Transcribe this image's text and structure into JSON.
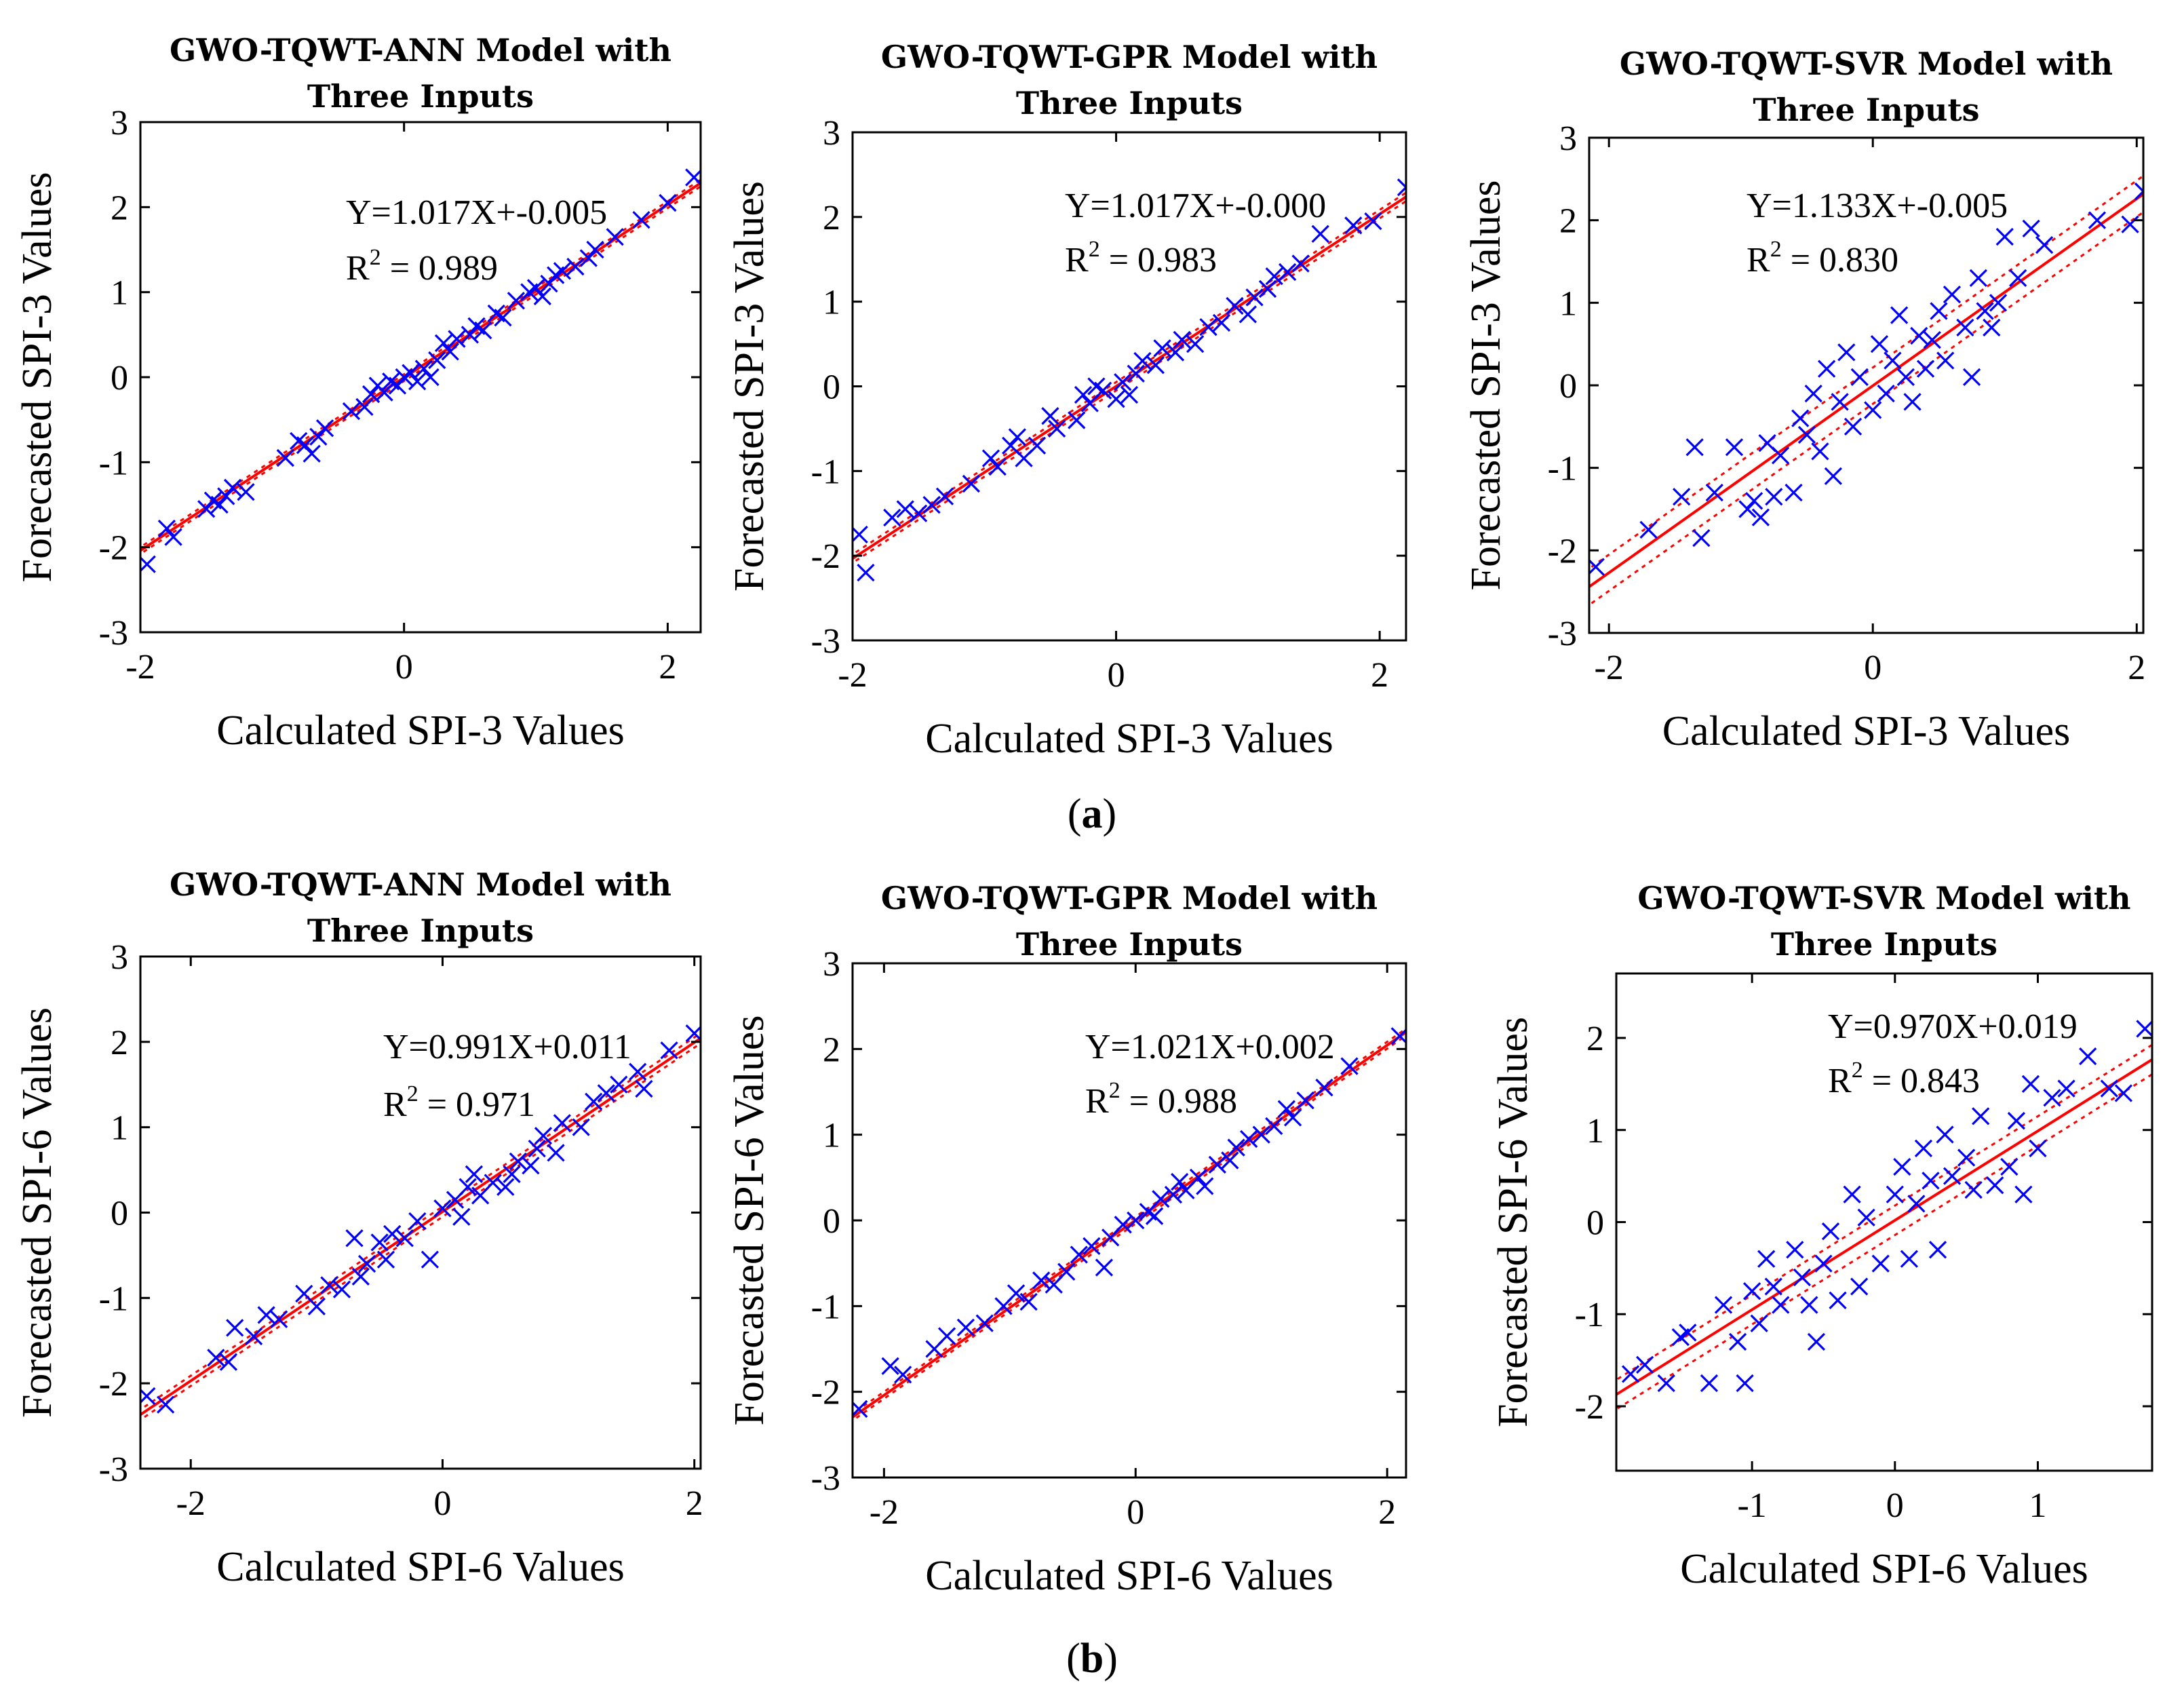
{
  "figure": {
    "caption_a": {
      "open": "(",
      "letter": "a",
      "close": ")"
    },
    "caption_b": {
      "open": "(",
      "letter": "b",
      "close": ")"
    }
  },
  "colors": {
    "points": "#0000ff",
    "fit_line": "#ff0000",
    "axes": "#000000"
  },
  "chart_data": [
    {
      "id": "a1",
      "type": "scatter",
      "title_line1": "GWO-TQWT-ANN Model with",
      "title_line2": "Three Inputs",
      "xlabel": "Calculated SPI-3 Values",
      "ylabel": "Forecasted SPI-3 Values",
      "xlim": [
        -2.0,
        2.25
      ],
      "ylim": [
        -3,
        3
      ],
      "xticks": [
        -2,
        0,
        2
      ],
      "yticks": [
        -3,
        -2,
        -1,
        0,
        1,
        2,
        3
      ],
      "equation": "Y=1.017X+-0.005",
      "r2_prefix": "R",
      "r2_sup": "2",
      "r2_value": " = 0.989",
      "slope": 1.017,
      "intercept": -0.005,
      "ci_band": 0.04,
      "points": [
        [
          -1.95,
          -2.2
        ],
        [
          -1.8,
          -1.78
        ],
        [
          -1.75,
          -1.88
        ],
        [
          -1.5,
          -1.55
        ],
        [
          -1.45,
          -1.45
        ],
        [
          -1.4,
          -1.5
        ],
        [
          -1.35,
          -1.4
        ],
        [
          -1.3,
          -1.3
        ],
        [
          -1.2,
          -1.35
        ],
        [
          -0.9,
          -0.95
        ],
        [
          -0.8,
          -0.75
        ],
        [
          -0.75,
          -0.8
        ],
        [
          -0.7,
          -0.9
        ],
        [
          -0.65,
          -0.7
        ],
        [
          -0.6,
          -0.6
        ],
        [
          -0.4,
          -0.4
        ],
        [
          -0.3,
          -0.35
        ],
        [
          -0.25,
          -0.2
        ],
        [
          -0.2,
          -0.1
        ],
        [
          -0.15,
          -0.18
        ],
        [
          -0.1,
          -0.05
        ],
        [
          -0.05,
          -0.1
        ],
        [
          0.0,
          0.0
        ],
        [
          0.05,
          0.05
        ],
        [
          0.1,
          -0.05
        ],
        [
          0.15,
          0.1
        ],
        [
          0.2,
          0.0
        ],
        [
          0.25,
          0.2
        ],
        [
          0.3,
          0.4
        ],
        [
          0.35,
          0.3
        ],
        [
          0.4,
          0.45
        ],
        [
          0.5,
          0.5
        ],
        [
          0.55,
          0.6
        ],
        [
          0.6,
          0.55
        ],
        [
          0.7,
          0.75
        ],
        [
          0.75,
          0.7
        ],
        [
          0.85,
          0.9
        ],
        [
          0.95,
          1.0
        ],
        [
          1.0,
          1.05
        ],
        [
          1.05,
          0.95
        ],
        [
          1.1,
          1.1
        ],
        [
          1.15,
          1.2
        ],
        [
          1.2,
          1.25
        ],
        [
          1.3,
          1.3
        ],
        [
          1.4,
          1.4
        ],
        [
          1.45,
          1.5
        ],
        [
          1.6,
          1.65
        ],
        [
          1.8,
          1.85
        ],
        [
          2.0,
          2.05
        ],
        [
          2.2,
          2.35
        ]
      ]
    },
    {
      "id": "a2",
      "type": "scatter",
      "title_line1": "GWO-TQWT-GPR Model with",
      "title_line2": "Three Inputs",
      "xlabel": "Calculated SPI-3 Values",
      "ylabel": "Forecasted SPI-3 Values",
      "xlim": [
        -2.0,
        2.2
      ],
      "ylim": [
        -3,
        3
      ],
      "xticks": [
        -2,
        0,
        2
      ],
      "yticks": [
        -3,
        -2,
        -1,
        0,
        1,
        2,
        3
      ],
      "equation": "Y=1.017X+-0.000",
      "r2_prefix": "R",
      "r2_sup": "2",
      "r2_value": " = 0.983",
      "slope": 1.017,
      "intercept": 0.0,
      "ci_band": 0.05,
      "points": [
        [
          -1.95,
          -1.75
        ],
        [
          -1.9,
          -2.2
        ],
        [
          -1.7,
          -1.55
        ],
        [
          -1.6,
          -1.45
        ],
        [
          -1.5,
          -1.5
        ],
        [
          -1.4,
          -1.4
        ],
        [
          -1.3,
          -1.3
        ],
        [
          -1.1,
          -1.15
        ],
        [
          -0.95,
          -0.85
        ],
        [
          -0.9,
          -0.95
        ],
        [
          -0.8,
          -0.7
        ],
        [
          -0.75,
          -0.6
        ],
        [
          -0.7,
          -0.85
        ],
        [
          -0.6,
          -0.7
        ],
        [
          -0.5,
          -0.35
        ],
        [
          -0.45,
          -0.5
        ],
        [
          -0.3,
          -0.4
        ],
        [
          -0.25,
          -0.1
        ],
        [
          -0.2,
          -0.2
        ],
        [
          -0.15,
          0.0
        ],
        [
          -0.1,
          -0.05
        ],
        [
          0.0,
          -0.15
        ],
        [
          0.05,
          0.05
        ],
        [
          0.1,
          -0.1
        ],
        [
          0.15,
          0.15
        ],
        [
          0.2,
          0.3
        ],
        [
          0.3,
          0.25
        ],
        [
          0.35,
          0.45
        ],
        [
          0.45,
          0.4
        ],
        [
          0.5,
          0.55
        ],
        [
          0.6,
          0.5
        ],
        [
          0.7,
          0.7
        ],
        [
          0.8,
          0.75
        ],
        [
          0.9,
          0.95
        ],
        [
          1.0,
          0.85
        ],
        [
          1.05,
          1.05
        ],
        [
          1.15,
          1.15
        ],
        [
          1.2,
          1.3
        ],
        [
          1.3,
          1.35
        ],
        [
          1.4,
          1.45
        ],
        [
          1.55,
          1.8
        ],
        [
          1.8,
          1.9
        ],
        [
          1.95,
          1.95
        ],
        [
          2.2,
          2.35
        ]
      ]
    },
    {
      "id": "a3",
      "type": "scatter",
      "title_line1": "GWO-TQWT-SVR Model with",
      "title_line2": "Three Inputs",
      "xlabel": "Calculated SPI-3 Values",
      "ylabel": "Forecasted SPI-3 Values",
      "xlim": [
        -2.15,
        2.05
      ],
      "ylim": [
        -3,
        3
      ],
      "xticks": [
        -2,
        0,
        2
      ],
      "yticks": [
        -3,
        -2,
        -1,
        0,
        1,
        2,
        3
      ],
      "equation": "Y=1.133X+-0.005",
      "r2_prefix": "R",
      "r2_sup": "2",
      "r2_value": " = 0.830",
      "slope": 1.133,
      "intercept": -0.005,
      "ci_band": 0.22,
      "points": [
        [
          -2.1,
          -2.2
        ],
        [
          -1.7,
          -1.75
        ],
        [
          -1.45,
          -1.35
        ],
        [
          -1.35,
          -0.75
        ],
        [
          -1.3,
          -1.85
        ],
        [
          -1.2,
          -1.3
        ],
        [
          -1.05,
          -0.75
        ],
        [
          -0.95,
          -1.5
        ],
        [
          -0.9,
          -1.4
        ],
        [
          -0.85,
          -1.6
        ],
        [
          -0.8,
          -0.7
        ],
        [
          -0.75,
          -1.35
        ],
        [
          -0.7,
          -0.85
        ],
        [
          -0.6,
          -1.3
        ],
        [
          -0.55,
          -0.4
        ],
        [
          -0.5,
          -0.6
        ],
        [
          -0.45,
          -0.1
        ],
        [
          -0.4,
          -0.8
        ],
        [
          -0.35,
          0.2
        ],
        [
          -0.3,
          -1.1
        ],
        [
          -0.25,
          -0.2
        ],
        [
          -0.2,
          0.4
        ],
        [
          -0.15,
          -0.5
        ],
        [
          -0.1,
          0.1
        ],
        [
          0.0,
          -0.3
        ],
        [
          0.05,
          0.5
        ],
        [
          0.1,
          -0.1
        ],
        [
          0.15,
          0.3
        ],
        [
          0.2,
          0.85
        ],
        [
          0.25,
          0.1
        ],
        [
          0.3,
          -0.2
        ],
        [
          0.35,
          0.6
        ],
        [
          0.4,
          0.2
        ],
        [
          0.45,
          0.55
        ],
        [
          0.5,
          0.9
        ],
        [
          0.55,
          0.3
        ],
        [
          0.6,
          1.1
        ],
        [
          0.7,
          0.7
        ],
        [
          0.75,
          0.1
        ],
        [
          0.8,
          1.3
        ],
        [
          0.85,
          0.9
        ],
        [
          0.9,
          0.7
        ],
        [
          0.95,
          1.0
        ],
        [
          1.0,
          1.8
        ],
        [
          1.1,
          1.3
        ],
        [
          1.2,
          1.9
        ],
        [
          1.3,
          1.7
        ],
        [
          1.7,
          2.0
        ],
        [
          1.95,
          1.95
        ],
        [
          2.05,
          2.35
        ]
      ]
    },
    {
      "id": "b1",
      "type": "scatter",
      "title_line1": "GWO-TQWT-ANN Model with",
      "title_line2": "Three Inputs",
      "xlabel": "Calculated SPI-6 Values",
      "ylabel": "Forecasted SPI-6 Values",
      "xlim": [
        -2.4,
        2.05
      ],
      "ylim": [
        -3,
        3
      ],
      "xticks": [
        -2,
        0,
        2
      ],
      "yticks": [
        -3,
        -2,
        -1,
        0,
        1,
        2,
        3
      ],
      "equation": "Y=0.991X+0.011",
      "r2_prefix": "R",
      "r2_sup": "2",
      "r2_value": " = 0.971",
      "slope": 0.991,
      "intercept": 0.011,
      "ci_band": 0.06,
      "points": [
        [
          -2.35,
          -2.15
        ],
        [
          -2.2,
          -2.25
        ],
        [
          -1.8,
          -1.7
        ],
        [
          -1.7,
          -1.75
        ],
        [
          -1.65,
          -1.35
        ],
        [
          -1.5,
          -1.45
        ],
        [
          -1.4,
          -1.2
        ],
        [
          -1.3,
          -1.25
        ],
        [
          -1.1,
          -0.95
        ],
        [
          -1.0,
          -1.1
        ],
        [
          -0.9,
          -0.85
        ],
        [
          -0.8,
          -0.9
        ],
        [
          -0.7,
          -0.3
        ],
        [
          -0.65,
          -0.75
        ],
        [
          -0.6,
          -0.6
        ],
        [
          -0.5,
          -0.35
        ],
        [
          -0.45,
          -0.55
        ],
        [
          -0.4,
          -0.25
        ],
        [
          -0.3,
          -0.3
        ],
        [
          -0.2,
          -0.1
        ],
        [
          -0.1,
          -0.55
        ],
        [
          0.0,
          0.05
        ],
        [
          0.1,
          0.15
        ],
        [
          0.15,
          -0.05
        ],
        [
          0.2,
          0.3
        ],
        [
          0.25,
          0.45
        ],
        [
          0.3,
          0.2
        ],
        [
          0.4,
          0.35
        ],
        [
          0.5,
          0.3
        ],
        [
          0.55,
          0.45
        ],
        [
          0.6,
          0.6
        ],
        [
          0.7,
          0.55
        ],
        [
          0.75,
          0.75
        ],
        [
          0.8,
          0.9
        ],
        [
          0.9,
          0.7
        ],
        [
          0.95,
          1.05
        ],
        [
          1.1,
          1.0
        ],
        [
          1.2,
          1.3
        ],
        [
          1.3,
          1.4
        ],
        [
          1.4,
          1.5
        ],
        [
          1.55,
          1.65
        ],
        [
          1.6,
          1.45
        ],
        [
          1.8,
          1.9
        ],
        [
          2.0,
          2.1
        ]
      ]
    },
    {
      "id": "b2",
      "type": "scatter",
      "title_line1": "GWO-TQWT-GPR Model with",
      "title_line2": "Three Inputs",
      "xlabel": "Calculated SPI-6 Values",
      "ylabel": "Forecasted SPI-6 Values",
      "xlim": [
        -2.25,
        2.15
      ],
      "ylim": [
        -3,
        3
      ],
      "xticks": [
        -2,
        0,
        2
      ],
      "yticks": [
        -3,
        -2,
        -1,
        0,
        1,
        2,
        3
      ],
      "equation": "Y=1.021X+0.002",
      "r2_prefix": "R",
      "r2_sup": "2",
      "r2_value": " = 0.988",
      "slope": 1.021,
      "intercept": 0.002,
      "ci_band": 0.04,
      "points": [
        [
          -2.2,
          -2.2
        ],
        [
          -1.95,
          -1.7
        ],
        [
          -1.85,
          -1.8
        ],
        [
          -1.6,
          -1.5
        ],
        [
          -1.5,
          -1.35
        ],
        [
          -1.35,
          -1.25
        ],
        [
          -1.2,
          -1.2
        ],
        [
          -1.05,
          -1.0
        ],
        [
          -0.95,
          -0.85
        ],
        [
          -0.85,
          -0.95
        ],
        [
          -0.75,
          -0.7
        ],
        [
          -0.65,
          -0.75
        ],
        [
          -0.55,
          -0.6
        ],
        [
          -0.45,
          -0.4
        ],
        [
          -0.35,
          -0.3
        ],
        [
          -0.25,
          -0.55
        ],
        [
          -0.2,
          -0.2
        ],
        [
          -0.1,
          -0.05
        ],
        [
          0.0,
          0.0
        ],
        [
          0.1,
          0.1
        ],
        [
          0.15,
          0.05
        ],
        [
          0.2,
          0.25
        ],
        [
          0.3,
          0.3
        ],
        [
          0.35,
          0.45
        ],
        [
          0.4,
          0.35
        ],
        [
          0.5,
          0.5
        ],
        [
          0.55,
          0.4
        ],
        [
          0.65,
          0.65
        ],
        [
          0.75,
          0.7
        ],
        [
          0.8,
          0.85
        ],
        [
          0.9,
          0.95
        ],
        [
          1.0,
          1.0
        ],
        [
          1.1,
          1.1
        ],
        [
          1.2,
          1.3
        ],
        [
          1.25,
          1.2
        ],
        [
          1.35,
          1.4
        ],
        [
          1.5,
          1.55
        ],
        [
          1.7,
          1.8
        ],
        [
          2.1,
          2.15
        ]
      ]
    },
    {
      "id": "b3",
      "type": "scatter",
      "title_line1": "GWO-TQWT-SVR Model with",
      "title_line2": "Three Inputs",
      "xlabel": "Calculated SPI-6 Values",
      "ylabel": "Forecasted SPI-6 Values",
      "xlim": [
        -1.95,
        1.8
      ],
      "ylim": [
        -2.7,
        2.7
      ],
      "xticks": [
        -1,
        0,
        1
      ],
      "yticks": [
        -2,
        -1,
        0,
        1,
        2
      ],
      "equation": "Y=0.970X+0.019",
      "r2_prefix": "R",
      "r2_sup": "2",
      "r2_value": " = 0.843",
      "slope": 0.97,
      "intercept": 0.019,
      "ci_band": 0.16,
      "points": [
        [
          -1.85,
          -1.65
        ],
        [
          -1.75,
          -1.55
        ],
        [
          -1.6,
          -1.75
        ],
        [
          -1.5,
          -1.25
        ],
        [
          -1.45,
          -1.2
        ],
        [
          -1.3,
          -1.75
        ],
        [
          -1.2,
          -0.9
        ],
        [
          -1.1,
          -1.3
        ],
        [
          -1.05,
          -1.75
        ],
        [
          -1.0,
          -0.75
        ],
        [
          -0.95,
          -1.1
        ],
        [
          -0.9,
          -0.4
        ],
        [
          -0.85,
          -0.7
        ],
        [
          -0.8,
          -0.9
        ],
        [
          -0.7,
          -0.3
        ],
        [
          -0.65,
          -0.6
        ],
        [
          -0.6,
          -0.9
        ],
        [
          -0.55,
          -1.3
        ],
        [
          -0.5,
          -0.45
        ],
        [
          -0.45,
          -0.1
        ],
        [
          -0.4,
          -0.85
        ],
        [
          -0.3,
          0.3
        ],
        [
          -0.25,
          -0.7
        ],
        [
          -0.2,
          0.05
        ],
        [
          -0.1,
          -0.45
        ],
        [
          0.0,
          0.3
        ],
        [
          0.05,
          0.6
        ],
        [
          0.1,
          -0.4
        ],
        [
          0.15,
          0.2
        ],
        [
          0.2,
          0.8
        ],
        [
          0.25,
          0.45
        ],
        [
          0.3,
          -0.3
        ],
        [
          0.35,
          0.95
        ],
        [
          0.4,
          0.5
        ],
        [
          0.5,
          0.7
        ],
        [
          0.55,
          0.35
        ],
        [
          0.6,
          1.15
        ],
        [
          0.7,
          0.4
        ],
        [
          0.8,
          0.6
        ],
        [
          0.85,
          1.1
        ],
        [
          0.9,
          0.3
        ],
        [
          0.95,
          1.5
        ],
        [
          1.0,
          0.8
        ],
        [
          1.1,
          1.35
        ],
        [
          1.2,
          1.45
        ],
        [
          1.35,
          1.8
        ],
        [
          1.5,
          1.45
        ],
        [
          1.6,
          1.4
        ],
        [
          1.75,
          2.1
        ]
      ]
    }
  ]
}
